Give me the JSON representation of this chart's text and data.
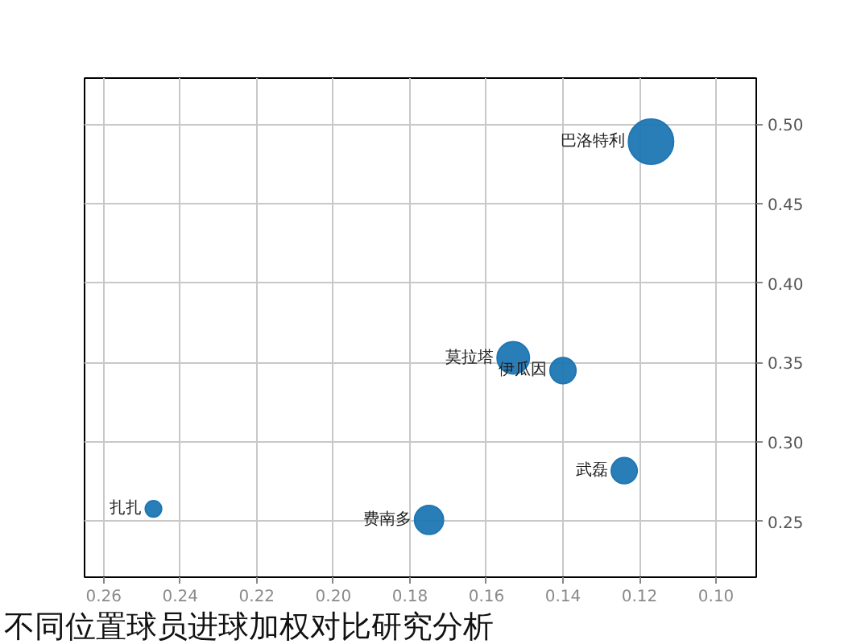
{
  "chart_data": {
    "type": "bubble",
    "title": "不同位置球员进球加权对比研究分析",
    "xlim": [
      0.265,
      0.0895
    ],
    "xticks": [
      0.26,
      0.24,
      0.22,
      {
        "value": 0.2,
        "label": "0.20"
      },
      0.18,
      0.16,
      0.14,
      0.12,
      {
        "value": 0.1,
        "label": "0.10"
      }
    ],
    "ylim": [
      0.215,
      0.529
    ],
    "yticks": [
      0.25,
      {
        "value": 0.3,
        "label": "0.30"
      },
      0.35,
      {
        "value": 0.4,
        "label": "0.40"
      },
      0.45,
      {
        "value": 0.5,
        "label": "0.50"
      }
    ],
    "series": [
      {
        "name": "巴洛特利",
        "color": "#1f77b4",
        "x": [
          0.117
        ],
        "values": [
          0.489
        ],
        "sizes": [
          1
        ]
      },
      {
        "name": "莫拉塔",
        "color": "#1f77b4",
        "x": [
          0.153
        ],
        "values": [
          0.353
        ],
        "sizes": [
          0.51
        ]
      },
      {
        "name": "伊瓜因",
        "color": "#1f77b4",
        "x": [
          0.14
        ],
        "values": [
          0.345
        ],
        "sizes": [
          0.33
        ]
      },
      {
        "name": "武磊",
        "color": "#1f77b4",
        "x": [
          0.124
        ],
        "values": [
          0.282
        ],
        "sizes": [
          0.33
        ]
      },
      {
        "name": "费南多",
        "color": "#1f77b4",
        "x": [
          0.175
        ],
        "values": [
          0.251
        ],
        "sizes": [
          0.41
        ]
      },
      {
        "name": "扎扎",
        "color": "#1f77b4",
        "x": [
          0.247
        ],
        "values": [
          0.258
        ],
        "sizes": [
          0.13
        ]
      }
    ],
    "grid": true,
    "marker": "circle"
  }
}
